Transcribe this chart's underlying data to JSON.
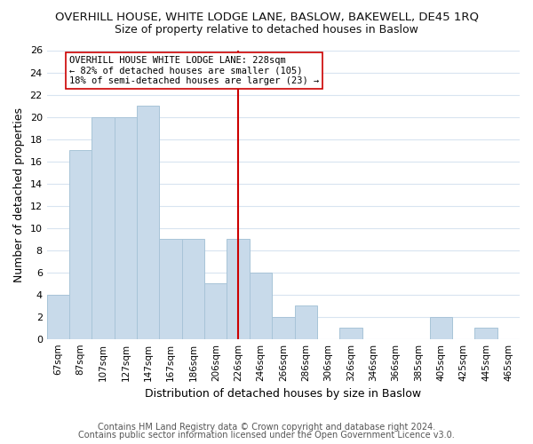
{
  "title": "OVERHILL HOUSE, WHITE LODGE LANE, BASLOW, BAKEWELL, DE45 1RQ",
  "subtitle": "Size of property relative to detached houses in Baslow",
  "xlabel": "Distribution of detached houses by size in Baslow",
  "ylabel": "Number of detached properties",
  "bar_color": "#c8daea",
  "bar_edge_color": "#a8c4d8",
  "grid_color": "#d8e4f0",
  "categories": [
    "67sqm",
    "87sqm",
    "107sqm",
    "127sqm",
    "147sqm",
    "167sqm",
    "186sqm",
    "206sqm",
    "226sqm",
    "246sqm",
    "266sqm",
    "286sqm",
    "306sqm",
    "326sqm",
    "346sqm",
    "366sqm",
    "385sqm",
    "405sqm",
    "425sqm",
    "445sqm",
    "465sqm"
  ],
  "values": [
    4,
    17,
    20,
    20,
    21,
    9,
    9,
    5,
    9,
    6,
    2,
    3,
    0,
    1,
    0,
    0,
    0,
    2,
    0,
    1,
    0
  ],
  "ylim": [
    0,
    26
  ],
  "yticks": [
    0,
    2,
    4,
    6,
    8,
    10,
    12,
    14,
    16,
    18,
    20,
    22,
    24,
    26
  ],
  "reference_line_index": 8,
  "reference_line_color": "#cc0000",
  "annotation_text": "OVERHILL HOUSE WHITE LODGE LANE: 228sqm\n← 82% of detached houses are smaller (105)\n18% of semi-detached houses are larger (23) →",
  "annotation_box_color": "#ffffff",
  "annotation_box_edge": "#cc0000",
  "footer1": "Contains HM Land Registry data © Crown copyright and database right 2024.",
  "footer2": "Contains public sector information licensed under the Open Government Licence v3.0.",
  "background_color": "#ffffff",
  "title_fontsize": 9.5,
  "subtitle_fontsize": 9.0,
  "footer_fontsize": 7.0
}
